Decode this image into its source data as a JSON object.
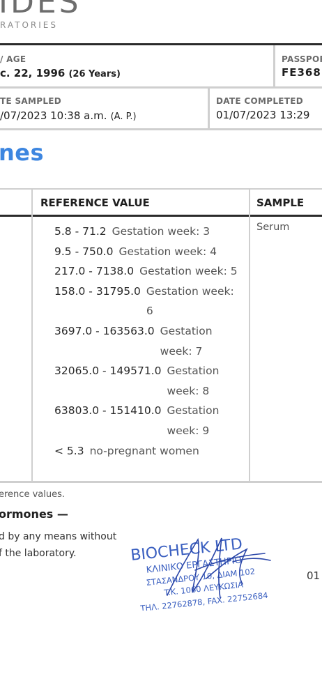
{
  "header": {
    "logo_text": "IDES",
    "logo_sub": "RATORIES"
  },
  "patient": {
    "dob_label": "/ AGE",
    "dob_value": "c. 22, 1996",
    "age_value": "(26 Years)",
    "passport_label": "PASSPOR",
    "passport_value": "FE368"
  },
  "dates": {
    "sampled_label": "TE SAMPLED",
    "sampled_value": "/07/2023 10:38 a.m.",
    "sampled_suffix": "(A. P.)",
    "completed_label": "DATE COMPLETED",
    "completed_value": "01/07/2023 13:29"
  },
  "section": {
    "title": "nes"
  },
  "table": {
    "ref_header": "REFERENCE VALUE",
    "sample_header": "SAMPLE",
    "sample_value": "Serum",
    "rows": [
      {
        "range": "5.8 - 71.2",
        "note": "Gestation week: 3"
      },
      {
        "range": "9.5 - 750.0",
        "note": "Gestation week: 4"
      },
      {
        "range": "217.0 - 7138.0",
        "note": "Gestation week: 5"
      },
      {
        "range": "158.0 - 31795.0",
        "note": "Gestation week: 6"
      },
      {
        "range": "3697.0 - 163563.0",
        "note": "Gestation week: 7"
      },
      {
        "range": "32065.0 - 149571.0",
        "note": "Gestation week: 8"
      },
      {
        "range": "63803.0 - 151410.0",
        "note": "Gestation week: 9"
      },
      {
        "range": "< 5.3",
        "note": "no-pregnant women"
      }
    ]
  },
  "footer": {
    "note": "erence values.",
    "section_end": "ormones —",
    "copyright_line1": "d by any means without",
    "copyright_line2": "f the laboratory.",
    "page_fragment": "01"
  },
  "stamp": {
    "line1": "BIOCHECK LTD",
    "line2": "ΚΛΙΝΙΚΟ ΕΡΓΑΣΤΗΡΙΟ",
    "line3": "ΣΤΑΣΑΝΔΡΟΥ 10, ΔΙΑΜ 102",
    "line4": "T.K. 1060 ΛΕΥΚΩΣΙΑ",
    "line5": "ΤΗΛ. 22762878, FAX. 22752684",
    "ink_color": "#3a5fc0"
  }
}
